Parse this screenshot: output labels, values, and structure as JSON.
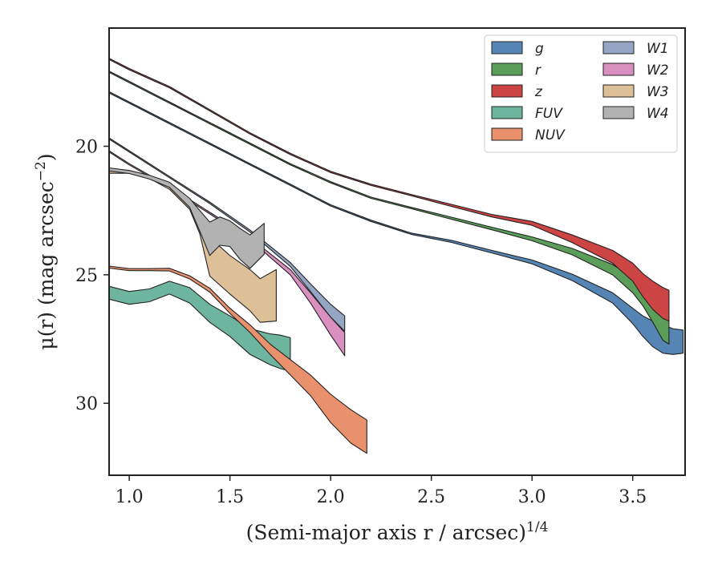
{
  "chart_data": {
    "type": "area",
    "title": "",
    "xlabel": "(Semi-major axis r / arcsec)",
    "xlabel_exponent": "1/4",
    "ylabel": "μ(r) (mag arcsec",
    "ylabel_exponent": "−2",
    "ylabel_close": ")",
    "xlim": [
      0.9,
      3.76
    ],
    "ylim": [
      32.8,
      15.4
    ],
    "y_inverted": true,
    "xticks": [
      1.0,
      1.5,
      2.0,
      2.5,
      3.0,
      3.5
    ],
    "xtick_labels": [
      "1.0",
      "1.5",
      "2.0",
      "2.5",
      "3.0",
      "3.5"
    ],
    "yticks": [
      20,
      25,
      30
    ],
    "ytick_labels": [
      "20",
      "25",
      "30"
    ],
    "grid": false,
    "legend_position": "top-right",
    "legend_columns": 2,
    "series": [
      {
        "name": "g",
        "color": "#5585b5",
        "x": [
          0.9,
          1.0,
          1.2,
          1.4,
          1.6,
          1.8,
          2.0,
          2.2,
          2.4,
          2.6,
          2.8,
          3.0,
          3.2,
          3.4,
          3.5,
          3.55,
          3.6,
          3.65,
          3.7,
          3.75
        ],
        "y": [
          17.9,
          18.3,
          19.1,
          19.9,
          20.7,
          21.5,
          22.3,
          22.9,
          23.4,
          23.7,
          24.1,
          24.5,
          25.1,
          25.9,
          26.6,
          27.0,
          27.3,
          27.5,
          27.6,
          27.6
        ],
        "width": [
          0.05,
          0.05,
          0.05,
          0.05,
          0.05,
          0.05,
          0.05,
          0.05,
          0.05,
          0.08,
          0.1,
          0.15,
          0.25,
          0.4,
          0.6,
          0.8,
          1.0,
          1.1,
          1.0,
          0.9
        ]
      },
      {
        "name": "r",
        "color": "#5a9e5a",
        "x": [
          0.9,
          1.0,
          1.2,
          1.4,
          1.6,
          1.8,
          2.0,
          2.2,
          2.4,
          2.6,
          2.8,
          3.0,
          3.2,
          3.4,
          3.5,
          3.55,
          3.6,
          3.65,
          3.68
        ],
        "y": [
          17.1,
          17.5,
          18.3,
          19.1,
          19.9,
          20.7,
          21.4,
          22.0,
          22.4,
          22.8,
          23.2,
          23.6,
          24.1,
          24.8,
          25.4,
          25.8,
          26.3,
          26.9,
          27.1
        ],
        "width": [
          0.05,
          0.05,
          0.05,
          0.05,
          0.05,
          0.05,
          0.05,
          0.05,
          0.05,
          0.08,
          0.1,
          0.15,
          0.25,
          0.4,
          0.6,
          0.8,
          1.1,
          1.3,
          1.2
        ]
      },
      {
        "name": "z",
        "color": "#cc4444",
        "x": [
          0.9,
          1.0,
          1.2,
          1.4,
          1.6,
          1.8,
          2.0,
          2.2,
          2.4,
          2.6,
          2.8,
          3.0,
          3.2,
          3.4,
          3.5,
          3.55,
          3.6,
          3.65,
          3.68
        ],
        "y": [
          16.6,
          17.0,
          17.7,
          18.6,
          19.5,
          20.3,
          21.0,
          21.5,
          21.9,
          22.3,
          22.7,
          23.0,
          23.6,
          24.3,
          24.9,
          25.4,
          25.8,
          26.1,
          26.2
        ],
        "width": [
          0.05,
          0.05,
          0.05,
          0.05,
          0.05,
          0.05,
          0.05,
          0.05,
          0.05,
          0.08,
          0.1,
          0.15,
          0.3,
          0.5,
          0.7,
          0.9,
          1.1,
          1.2,
          1.2
        ]
      },
      {
        "name": "FUV",
        "color": "#6db59e",
        "x": [
          0.9,
          1.0,
          1.1,
          1.2,
          1.3,
          1.4,
          1.5,
          1.6,
          1.7,
          1.75,
          1.8
        ],
        "y": [
          25.7,
          25.9,
          25.8,
          25.5,
          25.8,
          26.5,
          27.0,
          27.6,
          27.9,
          28.0,
          28.1
        ],
        "width": [
          0.5,
          0.5,
          0.5,
          0.5,
          0.6,
          0.7,
          0.8,
          1.0,
          1.2,
          1.3,
          1.3
        ]
      },
      {
        "name": "NUV",
        "color": "#e9906c",
        "x": [
          0.9,
          1.0,
          1.1,
          1.2,
          1.3,
          1.4,
          1.5,
          1.6,
          1.7,
          1.8,
          1.9,
          2.0,
          2.1,
          2.18
        ],
        "y": [
          24.7,
          24.8,
          24.8,
          24.8,
          25.1,
          25.6,
          26.4,
          27.1,
          27.9,
          28.6,
          29.3,
          30.2,
          30.9,
          31.3
        ],
        "width": [
          0.08,
          0.08,
          0.08,
          0.1,
          0.12,
          0.15,
          0.2,
          0.3,
          0.4,
          0.6,
          0.8,
          1.1,
          1.3,
          1.3
        ]
      },
      {
        "name": "W1",
        "color": "#94a6c4",
        "x": [
          0.9,
          1.0,
          1.2,
          1.4,
          1.6,
          1.8,
          1.9,
          2.0,
          2.07
        ],
        "y": [
          19.7,
          20.2,
          21.2,
          22.2,
          23.3,
          24.6,
          25.5,
          26.4,
          26.9
        ],
        "width": [
          0.05,
          0.05,
          0.05,
          0.06,
          0.08,
          0.15,
          0.3,
          0.5,
          0.6
        ]
      },
      {
        "name": "W2",
        "color": "#d98fc0",
        "x": [
          0.9,
          1.0,
          1.2,
          1.4,
          1.6,
          1.8,
          1.9,
          2.0,
          2.07
        ],
        "y": [
          20.2,
          20.7,
          21.6,
          22.6,
          23.6,
          24.9,
          25.9,
          27.0,
          27.7
        ],
        "width": [
          0.05,
          0.05,
          0.05,
          0.06,
          0.08,
          0.2,
          0.4,
          0.7,
          0.9
        ]
      },
      {
        "name": "W3",
        "color": "#ddc098",
        "x": [
          0.9,
          1.0,
          1.1,
          1.2,
          1.3,
          1.35,
          1.4,
          1.5,
          1.6,
          1.65,
          1.73
        ],
        "y": [
          21.0,
          21.0,
          21.2,
          21.6,
          22.3,
          23.1,
          24.3,
          25.0,
          25.6,
          26.0,
          25.8
        ],
        "width": [
          0.1,
          0.1,
          0.1,
          0.15,
          0.3,
          0.6,
          1.5,
          1.5,
          1.6,
          1.7,
          2.0
        ]
      },
      {
        "name": "W4",
        "color": "#b2b2b2",
        "x": [
          0.9,
          1.0,
          1.1,
          1.2,
          1.3,
          1.35,
          1.4,
          1.45,
          1.5,
          1.55,
          1.6,
          1.67
        ],
        "y": [
          20.9,
          21.0,
          21.2,
          21.5,
          22.2,
          22.9,
          23.6,
          23.3,
          23.4,
          23.8,
          24.1,
          23.6
        ],
        "width": [
          0.12,
          0.12,
          0.15,
          0.2,
          0.35,
          0.8,
          1.3,
          1.1,
          1.0,
          1.2,
          1.3,
          1.2
        ]
      }
    ]
  }
}
